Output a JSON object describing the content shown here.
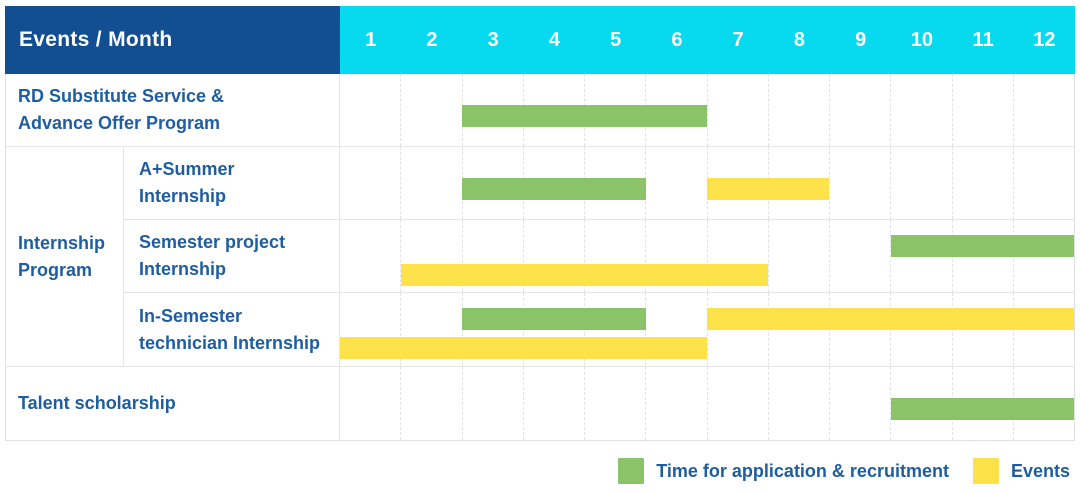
{
  "colors": {
    "header_bg": "#114f92",
    "month_header_bg": "#07d9ee",
    "bar_green": "#8bc368",
    "bar_yellow": "#fde24a",
    "label_text": "#1e5d9f",
    "grid_line": "#e6e6e6",
    "outer_border": "#e0e0e0"
  },
  "header": {
    "title": "Events / Month"
  },
  "legend": {
    "items": [
      {
        "color_key": "green",
        "label": "Time for application & recruitment"
      },
      {
        "color_key": "yellow",
        "label": "Events"
      }
    ]
  },
  "chart_data": {
    "type": "gantt",
    "title": "Events / Month",
    "months": [
      "1",
      "2",
      "3",
      "4",
      "5",
      "6",
      "7",
      "8",
      "9",
      "10",
      "11",
      "12"
    ],
    "month_range": [
      1,
      12
    ],
    "legend_position": "bottom-right",
    "legend": [
      {
        "color_key": "green",
        "meaning": "Time for application & recruitment"
      },
      {
        "color_key": "yellow",
        "meaning": "Events"
      }
    ],
    "sections": [
      {
        "type": "row",
        "row": {
          "id": "rd-substitute-service",
          "label_lines": [
            "RD Substitute Service &",
            "Advance Offer Program"
          ],
          "lanes": 1,
          "bars": [
            {
              "kind": "application-recruitment",
              "color_key": "green",
              "month_start": 3,
              "month_end": 6,
              "lane": 0
            }
          ]
        }
      },
      {
        "type": "group",
        "label_lines": [
          "Internship",
          "Program"
        ],
        "rows": [
          {
            "id": "a-plus-summer-internship",
            "label_lines": [
              "A+Summer",
              "Internship"
            ],
            "lanes": 1,
            "bars": [
              {
                "kind": "application-recruitment",
                "color_key": "green",
                "month_start": 3,
                "month_end": 5,
                "lane": 0
              },
              {
                "kind": "event",
                "color_key": "yellow",
                "month_start": 7,
                "month_end": 8,
                "lane": 0
              }
            ]
          },
          {
            "id": "semester-project-internship",
            "label_lines": [
              "Semester project",
              "Internship"
            ],
            "lanes": 2,
            "bars": [
              {
                "kind": "application-recruitment",
                "color_key": "green",
                "month_start": 10,
                "month_end": 12,
                "lane": 0
              },
              {
                "kind": "event",
                "color_key": "yellow",
                "month_start": 2,
                "month_end": 7,
                "lane": 1
              }
            ]
          },
          {
            "id": "in-semester-technician-internship",
            "label_lines": [
              "In-Semester",
              "technician Internship"
            ],
            "lanes": 2,
            "bars": [
              {
                "kind": "application-recruitment",
                "color_key": "green",
                "month_start": 3,
                "month_end": 5,
                "lane": 0
              },
              {
                "kind": "event",
                "color_key": "yellow",
                "month_start": 7,
                "month_end": 12,
                "lane": 0
              },
              {
                "kind": "event",
                "color_key": "yellow",
                "month_start": 1,
                "month_end": 6,
                "lane": 1
              }
            ]
          }
        ]
      },
      {
        "type": "row",
        "row": {
          "id": "talent-scholarship",
          "label_lines": [
            "Talent scholarship"
          ],
          "lanes": 1,
          "bars": [
            {
              "kind": "application-recruitment",
              "color_key": "green",
              "month_start": 10,
              "month_end": 12,
              "lane": 0
            }
          ]
        }
      }
    ]
  }
}
